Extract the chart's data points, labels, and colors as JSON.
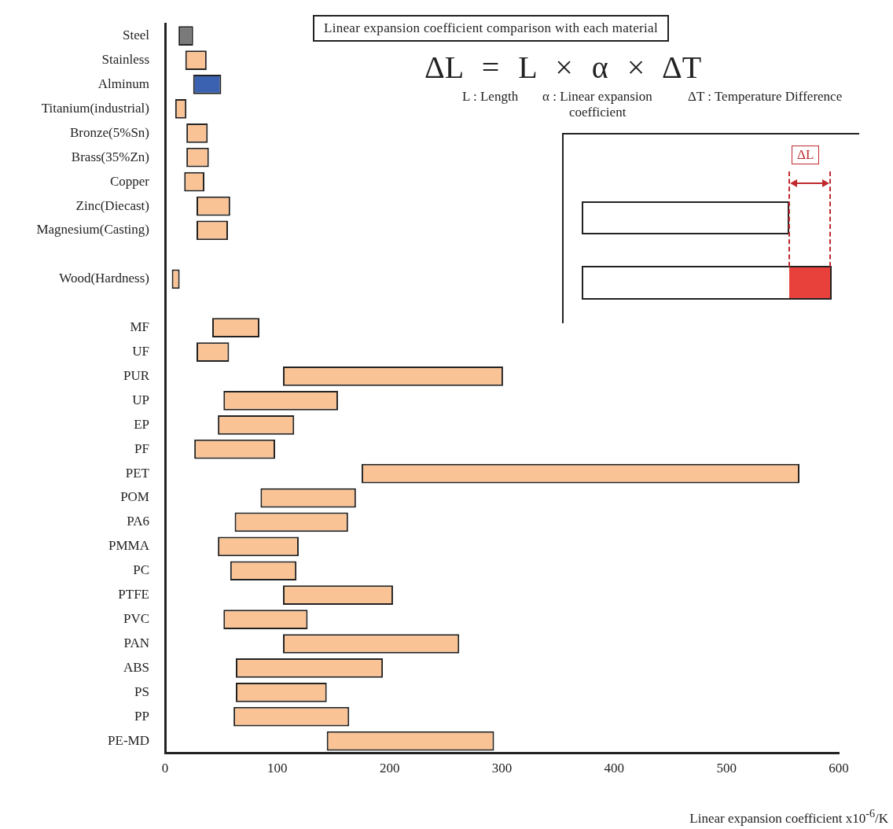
{
  "chart_data": {
    "type": "bar",
    "orientation": "horizontal",
    "title": "Linear expansion coefficient comparison with each material",
    "xlabel": "Linear expansion coefficient x10$^{-6}$/K",
    "categories": [
      "Steel",
      "Stainless",
      "Alminum",
      "Titanium(industrial)",
      "Bronze(5%Sn)",
      "Brass(35%Zn)",
      "Copper",
      "Zinc(Diecast)",
      "Magnesium(Casting)",
      null,
      "Wood(Hardness)",
      null,
      "MF",
      "UF",
      "PUR",
      "UP",
      "EP",
      "PF",
      "PET",
      "POM",
      "PA6",
      "PMMA",
      "PC",
      "PTFE",
      "PVC",
      "PAN",
      "ABS",
      "PS",
      "PP",
      "PE-MD"
    ],
    "base": [
      12,
      18,
      25,
      9,
      19,
      19,
      17,
      28,
      28,
      null,
      6,
      null,
      42,
      28,
      105,
      52,
      47,
      26,
      175,
      85,
      62,
      47,
      58,
      105,
      52,
      105,
      63,
      63,
      61,
      144
    ],
    "values": [
      13,
      19,
      25,
      10,
      19,
      20,
      18,
      30,
      28,
      null,
      7,
      null,
      42,
      29,
      196,
      102,
      68,
      72,
      390,
      85,
      101,
      72,
      59,
      98,
      75,
      157,
      131,
      81,
      103,
      149
    ],
    "colors": [
      "#7a7a7a",
      "#f9c396",
      "#3a62b0",
      "#f9c396",
      "#f9c396",
      "#f9c396",
      "#f9c396",
      "#f9c396",
      "#f9c396",
      "#f9c396",
      "#f9c396",
      "#f9c396",
      "#f9c396",
      "#f9c396",
      "#f9c396",
      "#f9c396",
      "#f9c396",
      "#f9c396",
      "#f9c396",
      "#f9c396",
      "#f9c396",
      "#f9c396",
      "#f9c396",
      "#f9c396",
      "#f9c396",
      "#f9c396",
      "#f9c396",
      "#f9c396",
      "#f9c396",
      "#f9c396"
    ],
    "xlim": [
      0,
      600
    ],
    "xticks": [
      0,
      100,
      200,
      300,
      400,
      500,
      600
    ],
    "grid": false,
    "legend": false,
    "annotations": [
      "ΔL = L × α × ΔT",
      "L : Length",
      "α : Linear expansion coefficient",
      "ΔT : Temperature Difference",
      "ΔL"
    ]
  }
}
